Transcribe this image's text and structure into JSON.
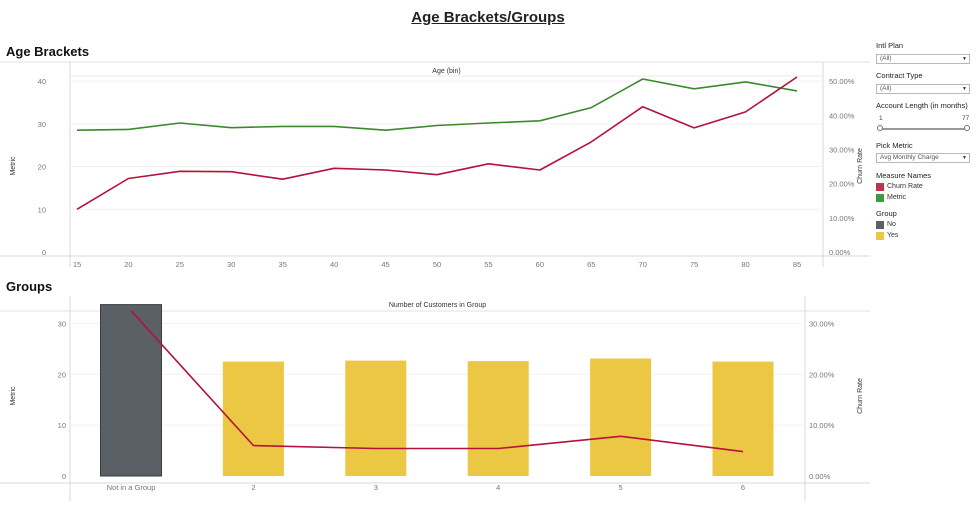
{
  "dashboard": {
    "title": "Age Brackets/Groups"
  },
  "sections": {
    "age": "Age Brackets",
    "groups": "Groups"
  },
  "controls": {
    "intl_plan": {
      "title": "Intl Plan",
      "value": "(All)"
    },
    "contract_type": {
      "title": "Contract Type",
      "value": "(All)"
    },
    "account_length": {
      "title": "Account Length (in months)",
      "min": "1",
      "max": "77"
    },
    "pick_metric": {
      "title": "Pick Metric",
      "value": "Avg Monthly Charge"
    }
  },
  "legends": {
    "measure_names": {
      "title": "Measure Names",
      "items": [
        {
          "label": "Churn Rate",
          "color": "#c0334f"
        },
        {
          "label": "Metric",
          "color": "#3f9940"
        }
      ]
    },
    "group": {
      "title": "Group",
      "items": [
        {
          "label": "No",
          "color": "#5b5f66"
        },
        {
          "label": "Yes",
          "color": "#ecc744"
        }
      ]
    }
  },
  "chart_data": [
    {
      "type": "line",
      "title": "Age (bin)",
      "ylabel": "Metric",
      "y2label": "Churn Rate",
      "x": [
        15,
        20,
        25,
        30,
        35,
        40,
        45,
        50,
        55,
        60,
        65,
        70,
        75,
        80,
        85
      ],
      "ylim": [
        0,
        44
      ],
      "y_ticks": [
        "0",
        "10",
        "20",
        "30",
        "40"
      ],
      "y2lim": [
        0,
        0.55
      ],
      "y2_ticks": [
        "0.00%",
        "10.00%",
        "20.00%",
        "30.00%",
        "40.00%",
        "50.00%"
      ],
      "series": [
        {
          "name": "Metric",
          "axis": "left",
          "color": "#3a8a2c",
          "values": [
            28.5,
            28.7,
            30.2,
            29.1,
            29.4,
            29.4,
            28.5,
            29.6,
            30.2,
            30.7,
            33.8,
            40.5,
            38.2,
            39.8,
            37.7
          ]
        },
        {
          "name": "Churn Rate",
          "axis": "right",
          "color": "#b3123a",
          "values": [
            0.125,
            0.215,
            0.236,
            0.235,
            0.213,
            0.245,
            0.24,
            0.226,
            0.258,
            0.24,
            0.322,
            0.425,
            0.363,
            0.41,
            0.512
          ]
        }
      ],
      "grid": true
    },
    {
      "type": "bar",
      "title": "Number of Customers in Group",
      "ylabel": "Metric",
      "y2label": "Churn Rate",
      "categories": [
        "Not in a Group",
        "2",
        "3",
        "4",
        "5",
        "6"
      ],
      "ylim": [
        0,
        35
      ],
      "y_ticks": [
        "0",
        "10",
        "20",
        "30"
      ],
      "y2lim": [
        0,
        0.35
      ],
      "y2_ticks": [
        "0.00%",
        "10.00%",
        "20.00%",
        "30.00%"
      ],
      "series": [
        {
          "name": "Metric",
          "type": "bar",
          "axis": "left",
          "values": [
            33.7,
            22.5,
            22.7,
            22.6,
            23.1,
            22.5
          ],
          "groups": [
            "No",
            "Yes",
            "Yes",
            "Yes",
            "Yes",
            "Yes"
          ]
        },
        {
          "name": "Churn Rate",
          "type": "line",
          "axis": "right",
          "color": "#b3123a",
          "values": [
            0.325,
            0.06,
            0.054,
            0.054,
            0.078,
            0.048
          ]
        }
      ],
      "grid": true
    }
  ]
}
